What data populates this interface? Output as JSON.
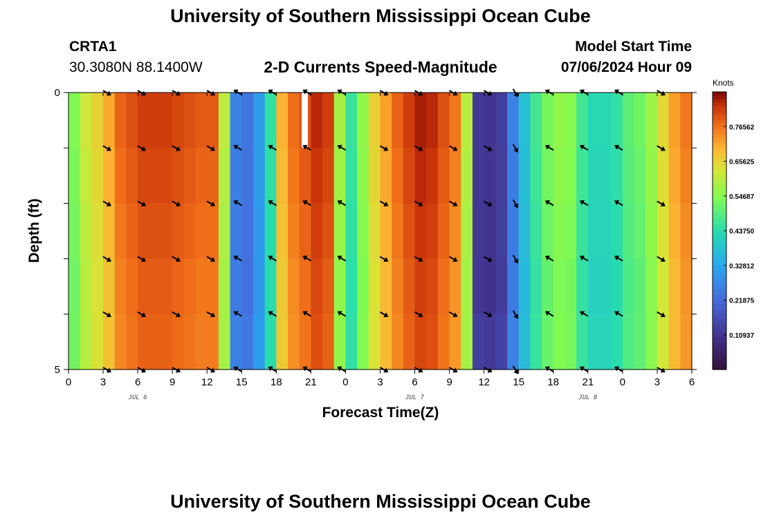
{
  "page": {
    "title": "University of Southern Mississippi Ocean Cube",
    "footer_title": "University of Southern Mississippi Ocean Cube"
  },
  "station": {
    "id": "CRTA1",
    "coords": "30.3080N  88.1400W"
  },
  "model": {
    "label": "Model Start Time",
    "value": "07/06/2024 Hour 09"
  },
  "chart_data": {
    "type": "heatmap",
    "title": "2-D Currents Speed-Magnitude",
    "xlabel": "Forecast Time(Z)",
    "ylabel": "Depth (ft)",
    "units": "Knots",
    "x_hours": [
      0,
      54
    ],
    "y_depth": [
      0,
      5
    ],
    "x_tick_labels": [
      "0",
      "3",
      "6",
      "9",
      "12",
      "15",
      "18",
      "21",
      "0",
      "3",
      "6",
      "9",
      "12",
      "15",
      "18",
      "21",
      "0",
      "3",
      "6"
    ],
    "y_tick_labels": [
      "0",
      "5"
    ],
    "date_labels": [
      "JUL 6",
      "JUL 7",
      "JUL 8"
    ],
    "colorbar_ticks": [
      "0.10937",
      "0.21875",
      "0.32812",
      "0.43750",
      "0.54687",
      "0.65625",
      "0.76562"
    ],
    "colorbar_range": [
      0,
      0.875
    ],
    "speed_profile_knots": [
      0.54,
      0.62,
      0.66,
      0.71,
      0.78,
      0.8,
      0.82,
      0.82,
      0.82,
      0.81,
      0.8,
      0.79,
      0.79,
      0.6,
      0.26,
      0.24,
      0.31,
      0.45,
      0.7,
      0.77,
      0.8,
      0.84,
      0.82,
      0.58,
      0.46,
      0.56,
      0.66,
      0.72,
      0.78,
      0.82,
      0.85,
      0.84,
      0.8,
      0.76,
      0.6,
      0.12,
      0.11,
      0.13,
      0.26,
      0.38,
      0.47,
      0.53,
      0.56,
      0.55,
      0.47,
      0.43,
      0.43,
      0.45,
      0.5,
      0.52,
      0.57,
      0.65,
      0.72,
      0.76
    ],
    "depth_rows_ft": [
      0,
      1,
      2,
      3,
      4,
      5
    ],
    "arrow_depths_ft": [
      0,
      1,
      2,
      3,
      4,
      5
    ],
    "arrow_hours": [
      3.3,
      6.3,
      9.3,
      12.3,
      14.7,
      17.7,
      20.7,
      23.7,
      27.3,
      30.3,
      33.3,
      36.3,
      38.7,
      41.7,
      44.7,
      47.7,
      51.3
    ],
    "arrow_angles_deg": [
      30,
      30,
      30,
      30,
      -150,
      -150,
      -150,
      -150,
      30,
      30,
      30,
      30,
      60,
      -150,
      -150,
      -150,
      30
    ]
  }
}
